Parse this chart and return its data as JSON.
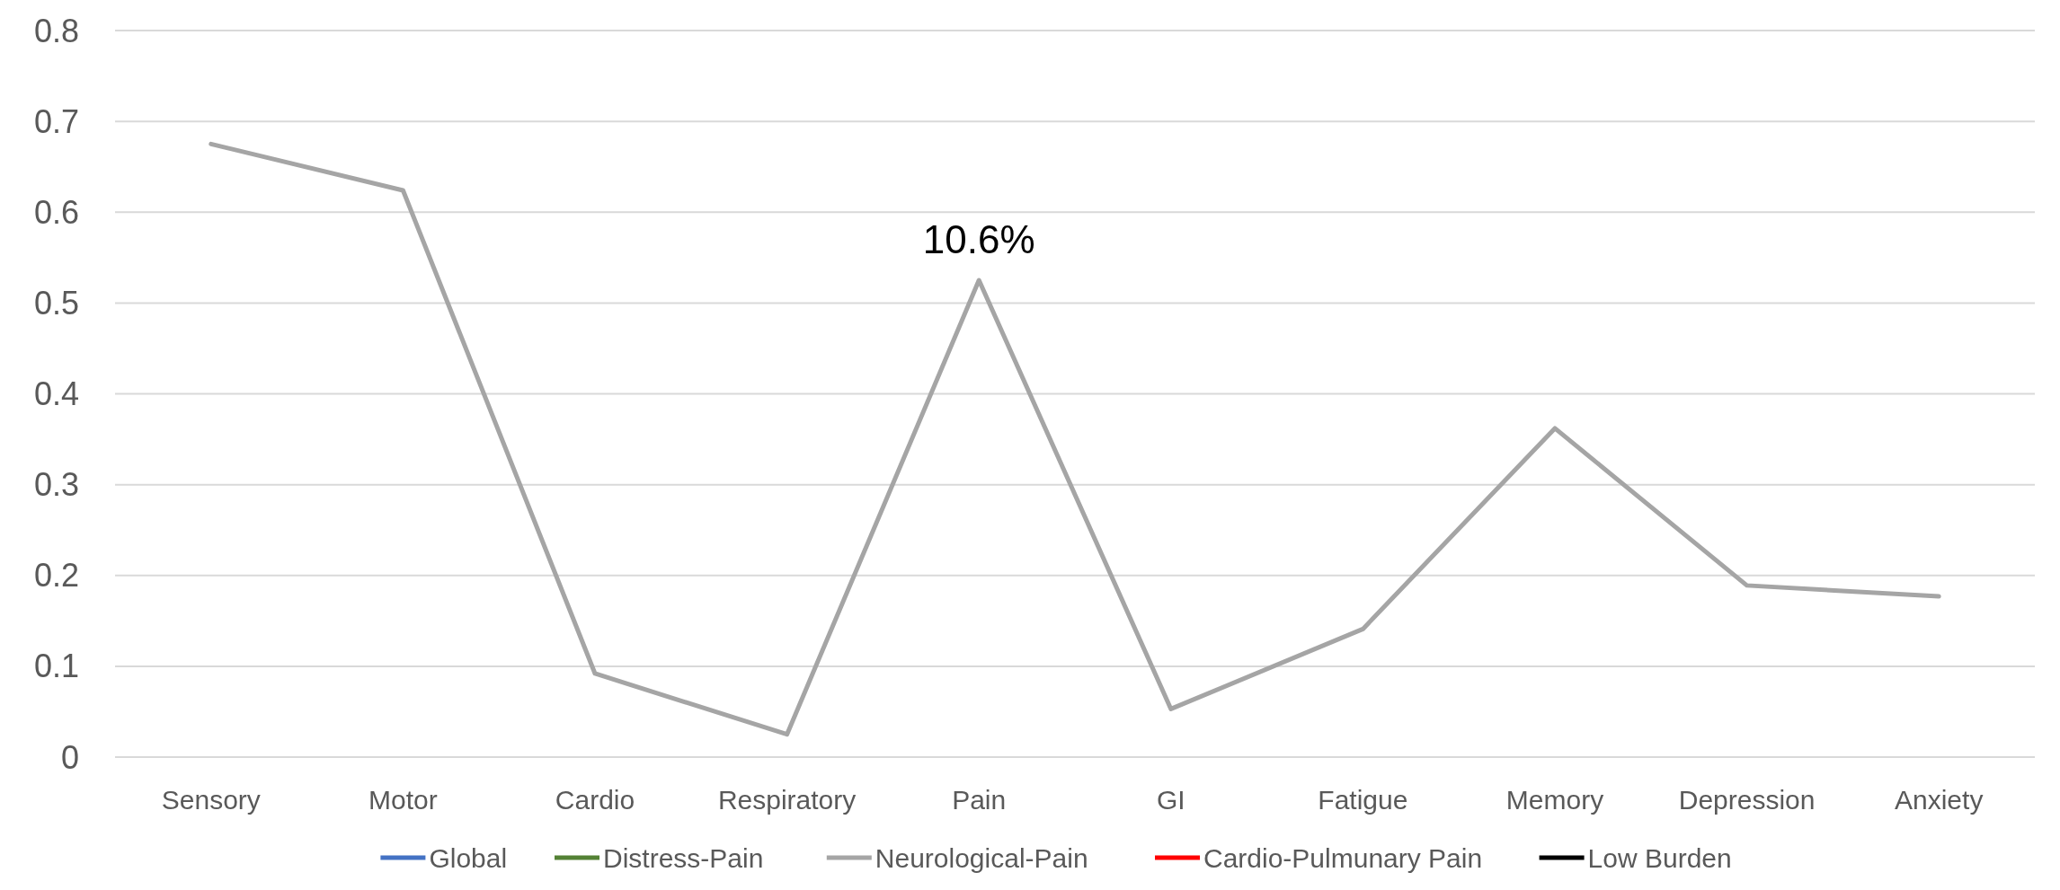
{
  "chart_data": {
    "type": "line",
    "categories": [
      "Sensory",
      "Motor",
      "Cardio",
      "Respiratory",
      "Pain",
      "GI",
      "Fatigue",
      "Memory",
      "Depression",
      "Anxiety"
    ],
    "series": [
      {
        "name": "Global",
        "color": "#4472c4",
        "values": [
          null,
          null,
          null,
          null,
          null,
          null,
          null,
          null,
          null,
          null
        ]
      },
      {
        "name": "Distress-Pain",
        "color": "#548235",
        "values": [
          null,
          null,
          null,
          null,
          null,
          null,
          null,
          null,
          null,
          null
        ]
      },
      {
        "name": "Neurological-Pain",
        "color": "#a5a5a5",
        "values": [
          0.675,
          0.624,
          0.092,
          0.025,
          0.525,
          0.053,
          0.141,
          0.362,
          0.189,
          0.177
        ]
      },
      {
        "name": "Cardio-Pulmunary Pain",
        "color": "#ff0000",
        "values": [
          null,
          null,
          null,
          null,
          null,
          null,
          null,
          null,
          null,
          null
        ]
      },
      {
        "name": "Low Burden",
        "color": "#000000",
        "values": [
          null,
          null,
          null,
          null,
          null,
          null,
          null,
          null,
          null,
          null
        ]
      }
    ],
    "ylim": [
      0,
      0.8
    ],
    "yticks": [
      0,
      0.1,
      0.2,
      0.3,
      0.4,
      0.5,
      0.6,
      0.7,
      0.8
    ],
    "grid": "y",
    "legend": "bottom",
    "marker": "none",
    "line_style": "solid",
    "annotations": [
      {
        "text": "10.6%",
        "x": "Pain",
        "y": 0.525
      }
    ]
  }
}
